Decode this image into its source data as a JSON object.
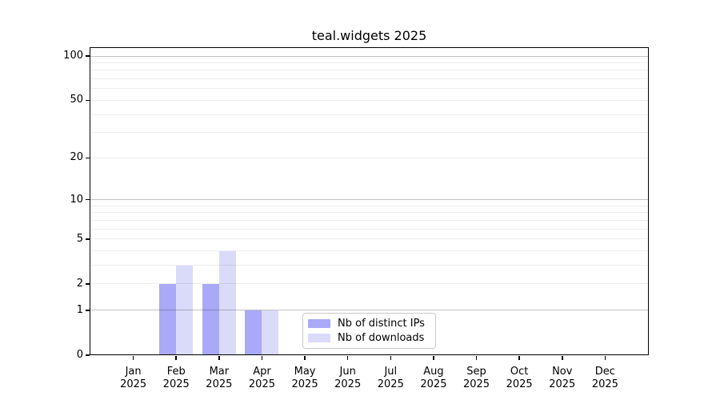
{
  "chart_data": {
    "type": "bar",
    "title": "teal.widgets 2025",
    "categories": [
      "Jan",
      "Feb",
      "Mar",
      "Apr",
      "May",
      "Jun",
      "Jul",
      "Aug",
      "Sep",
      "Oct",
      "Nov",
      "Dec"
    ],
    "category_year": "2025",
    "series": [
      {
        "name": "Nb of distinct IPs",
        "color": "#a9a9f7",
        "values": [
          0,
          2,
          2,
          1,
          0,
          0,
          0,
          0,
          0,
          0,
          0,
          0
        ]
      },
      {
        "name": "Nb of downloads",
        "color": "#dadaf9",
        "values": [
          0,
          3,
          4,
          1,
          0,
          0,
          0,
          0,
          0,
          0,
          0,
          0
        ]
      }
    ],
    "xlabel": "",
    "ylabel": "",
    "yscale": "log1p",
    "ylim": [
      0,
      113.3
    ],
    "yticks": [
      0,
      1,
      2,
      5,
      10,
      20,
      50,
      100
    ],
    "grid_minor_values": [
      2,
      3,
      4,
      5,
      6,
      7,
      8,
      9,
      20,
      30,
      40,
      50,
      60,
      70,
      80,
      90
    ],
    "grid_major_values": [
      1,
      10,
      100
    ],
    "grid_on": true,
    "legend_position": "lower center",
    "colors": {
      "bar_distinct_ips": "#a9a9f7",
      "bar_downloads": "#dadaf9",
      "grid_minor": "rgba(0,0,0,0.065)",
      "grid_major": "rgba(0,0,0,0.24)",
      "spine": "#000000",
      "background": "#ffffff"
    }
  }
}
